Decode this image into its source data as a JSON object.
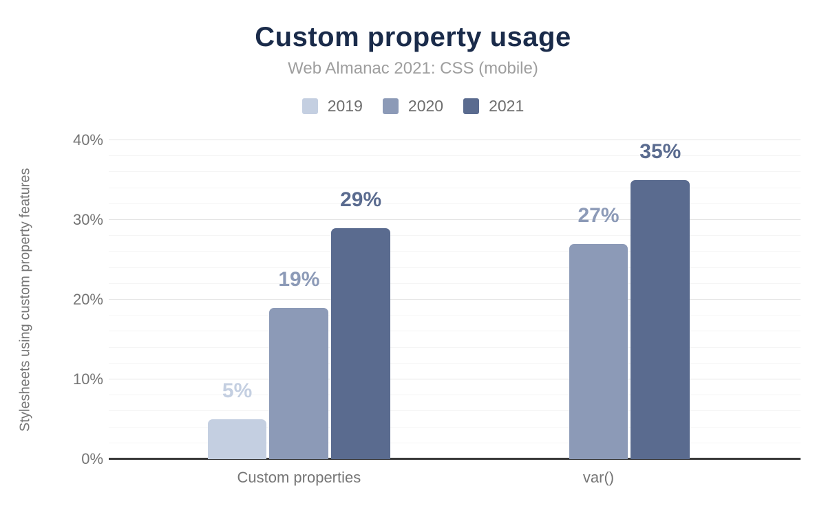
{
  "colors": {
    "title": "#1a2b4a",
    "subtitle": "#9e9e9e",
    "axis_text": "#757575",
    "grid_major": "#e4e4e4",
    "grid_minor": "#f5f5f5",
    "baseline": "#383838",
    "background": "#ffffff",
    "legend_text": "#6e6e6e"
  },
  "chart_data": {
    "type": "bar",
    "title": "Custom property usage",
    "subtitle": "Web Almanac 2021: CSS (mobile)",
    "categories": [
      "Custom properties",
      "var()"
    ],
    "series": [
      {
        "name": "2019",
        "color": "#c4cfe1",
        "values": [
          5,
          null
        ],
        "labels": [
          "5%",
          null
        ]
      },
      {
        "name": "2020",
        "color": "#8c9ab7",
        "values": [
          19,
          27
        ],
        "labels": [
          "19%",
          "27%"
        ]
      },
      {
        "name": "2021",
        "color": "#5a6b8f",
        "values": [
          29,
          35
        ],
        "labels": [
          "29%",
          "35%"
        ]
      }
    ],
    "xlabel": "",
    "ylabel": "Stylesheets using custom property features",
    "ylim": [
      0,
      40
    ],
    "yticks": [
      {
        "label": "0%",
        "value": 0
      },
      {
        "label": "10%",
        "value": 10
      },
      {
        "label": "20%",
        "value": 20
      },
      {
        "label": "30%",
        "value": 30
      },
      {
        "label": "40%",
        "value": 40
      }
    ],
    "grid": {
      "major_step": 10,
      "minor_step": 2,
      "grid_on": true
    },
    "legend_position": "top"
  }
}
